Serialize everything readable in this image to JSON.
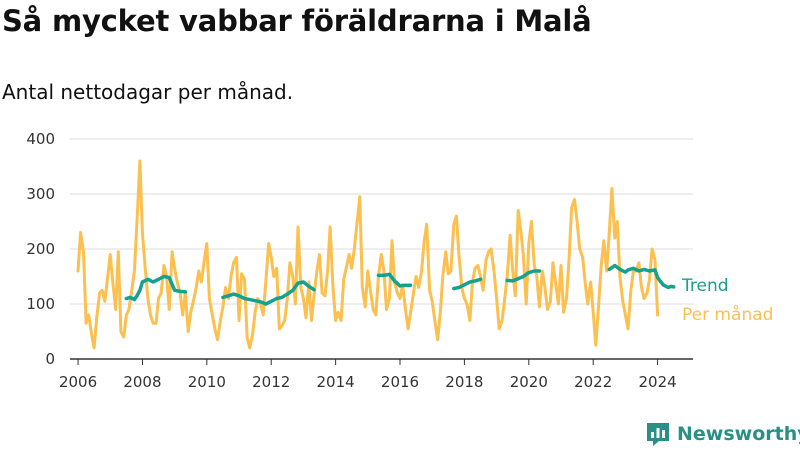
{
  "title": "Så mycket vabbar föräldrarna i Malå",
  "subtitle": "Antal nettodagar per månad.",
  "brand": "Newsworthy",
  "colors": {
    "trend": "#16a08e",
    "monthly": "#fbc04f",
    "grid": "#dddddd",
    "axis": "#333333"
  },
  "chart_data": {
    "type": "line",
    "title": "Så mycket vabbar föräldrarna i Malå",
    "subtitle": "Antal nettodagar per månad.",
    "xlabel": "",
    "ylabel": "",
    "ylim": [
      0,
      400
    ],
    "xlim": [
      2005.75,
      2025.1
    ],
    "x_ticks": [
      "2006",
      "2008",
      "2010",
      "2012",
      "2014",
      "2016",
      "2018",
      "2020",
      "2022",
      "2024"
    ],
    "y_ticks": [
      0,
      100,
      200,
      300,
      400
    ],
    "grid": true,
    "legend": "right",
    "series": [
      {
        "name": "Per månad",
        "color": "#fbc04f",
        "points": [
          [
            2006.0,
            160
          ],
          [
            2006.08,
            230
          ],
          [
            2006.17,
            195
          ],
          [
            2006.25,
            65
          ],
          [
            2006.33,
            80
          ],
          [
            2006.42,
            45
          ],
          [
            2006.5,
            20
          ],
          [
            2006.58,
            75
          ],
          [
            2006.67,
            120
          ],
          [
            2006.75,
            125
          ],
          [
            2006.83,
            105
          ],
          [
            2006.92,
            150
          ],
          [
            2007.0,
            190
          ],
          [
            2007.08,
            140
          ],
          [
            2007.17,
            90
          ],
          [
            2007.25,
            195
          ],
          [
            2007.33,
            50
          ],
          [
            2007.42,
            40
          ],
          [
            2007.5,
            80
          ],
          [
            2007.58,
            90
          ],
          [
            2007.67,
            125
          ],
          [
            2007.75,
            160
          ],
          [
            2007.83,
            250
          ],
          [
            2007.92,
            360
          ],
          [
            2008.0,
            230
          ],
          [
            2008.08,
            170
          ],
          [
            2008.17,
            110
          ],
          [
            2008.25,
            80
          ],
          [
            2008.33,
            65
          ],
          [
            2008.42,
            65
          ],
          [
            2008.5,
            110
          ],
          [
            2008.58,
            120
          ],
          [
            2008.67,
            170
          ],
          [
            2008.75,
            150
          ],
          [
            2008.83,
            90
          ],
          [
            2008.92,
            195
          ],
          [
            2009.0,
            165
          ],
          [
            2009.08,
            140
          ],
          [
            2009.17,
            120
          ],
          [
            2009.25,
            80
          ],
          [
            2009.33,
            120
          ],
          [
            2009.42,
            50
          ],
          [
            2009.5,
            85
          ],
          [
            2009.58,
            105
          ],
          [
            2009.67,
            130
          ],
          [
            2009.75,
            160
          ],
          [
            2009.83,
            140
          ],
          [
            2009.92,
            180
          ],
          [
            2010.0,
            210
          ],
          [
            2010.08,
            110
          ],
          [
            2010.17,
            80
          ],
          [
            2010.25,
            55
          ],
          [
            2010.33,
            35
          ],
          [
            2010.42,
            70
          ],
          [
            2010.5,
            95
          ],
          [
            2010.58,
            130
          ],
          [
            2010.67,
            110
          ],
          [
            2010.75,
            150
          ],
          [
            2010.83,
            175
          ],
          [
            2010.92,
            185
          ],
          [
            2011.0,
            70
          ],
          [
            2011.08,
            155
          ],
          [
            2011.17,
            145
          ],
          [
            2011.25,
            40
          ],
          [
            2011.33,
            20
          ],
          [
            2011.42,
            45
          ],
          [
            2011.5,
            85
          ],
          [
            2011.58,
            110
          ],
          [
            2011.67,
            100
          ],
          [
            2011.75,
            80
          ],
          [
            2011.83,
            140
          ],
          [
            2011.92,
            210
          ],
          [
            2012.0,
            185
          ],
          [
            2012.08,
            150
          ],
          [
            2012.17,
            165
          ],
          [
            2012.25,
            55
          ],
          [
            2012.33,
            60
          ],
          [
            2012.42,
            70
          ],
          [
            2012.5,
            110
          ],
          [
            2012.58,
            175
          ],
          [
            2012.67,
            150
          ],
          [
            2012.75,
            100
          ],
          [
            2012.83,
            240
          ],
          [
            2012.92,
            130
          ],
          [
            2013.0,
            110
          ],
          [
            2013.08,
            75
          ],
          [
            2013.17,
            140
          ],
          [
            2013.25,
            70
          ],
          [
            2013.33,
            115
          ],
          [
            2013.42,
            160
          ],
          [
            2013.5,
            190
          ],
          [
            2013.58,
            120
          ],
          [
            2013.67,
            115
          ],
          [
            2013.75,
            160
          ],
          [
            2013.83,
            240
          ],
          [
            2013.92,
            130
          ],
          [
            2014.0,
            70
          ],
          [
            2014.08,
            85
          ],
          [
            2014.17,
            70
          ],
          [
            2014.25,
            145
          ],
          [
            2014.33,
            165
          ],
          [
            2014.42,
            190
          ],
          [
            2014.5,
            165
          ],
          [
            2014.58,
            200
          ],
          [
            2014.67,
            250
          ],
          [
            2014.75,
            295
          ],
          [
            2014.83,
            130
          ],
          [
            2014.92,
            95
          ],
          [
            2015.0,
            160
          ],
          [
            2015.08,
            125
          ],
          [
            2015.17,
            90
          ],
          [
            2015.25,
            80
          ],
          [
            2015.33,
            150
          ],
          [
            2015.42,
            190
          ],
          [
            2015.5,
            160
          ],
          [
            2015.58,
            90
          ],
          [
            2015.67,
            110
          ],
          [
            2015.75,
            215
          ],
          [
            2015.83,
            140
          ],
          [
            2015.92,
            120
          ],
          [
            2016.0,
            110
          ],
          [
            2016.08,
            135
          ],
          [
            2016.17,
            90
          ],
          [
            2016.25,
            55
          ],
          [
            2016.33,
            85
          ],
          [
            2016.42,
            120
          ],
          [
            2016.5,
            150
          ],
          [
            2016.58,
            130
          ],
          [
            2016.67,
            160
          ],
          [
            2016.75,
            215
          ],
          [
            2016.83,
            245
          ],
          [
            2016.92,
            125
          ],
          [
            2017.0,
            105
          ],
          [
            2017.08,
            70
          ],
          [
            2017.17,
            35
          ],
          [
            2017.25,
            85
          ],
          [
            2017.33,
            150
          ],
          [
            2017.42,
            195
          ],
          [
            2017.5,
            155
          ],
          [
            2017.58,
            160
          ],
          [
            2017.67,
            245
          ],
          [
            2017.75,
            260
          ],
          [
            2017.83,
            190
          ],
          [
            2017.92,
            130
          ],
          [
            2018.0,
            110
          ],
          [
            2018.08,
            100
          ],
          [
            2018.17,
            70
          ],
          [
            2018.25,
            140
          ],
          [
            2018.33,
            165
          ],
          [
            2018.42,
            170
          ],
          [
            2018.5,
            150
          ],
          [
            2018.58,
            125
          ],
          [
            2018.67,
            180
          ],
          [
            2018.75,
            195
          ],
          [
            2018.83,
            200
          ],
          [
            2018.92,
            160
          ],
          [
            2019.0,
            110
          ],
          [
            2019.08,
            55
          ],
          [
            2019.17,
            70
          ],
          [
            2019.25,
            110
          ],
          [
            2019.33,
            150
          ],
          [
            2019.42,
            225
          ],
          [
            2019.5,
            160
          ],
          [
            2019.58,
            115
          ],
          [
            2019.67,
            270
          ],
          [
            2019.75,
            235
          ],
          [
            2019.83,
            190
          ],
          [
            2019.92,
            100
          ],
          [
            2020.0,
            210
          ],
          [
            2020.08,
            250
          ],
          [
            2020.17,
            170
          ],
          [
            2020.25,
            150
          ],
          [
            2020.33,
            95
          ],
          [
            2020.42,
            160
          ],
          [
            2020.5,
            130
          ],
          [
            2020.58,
            90
          ],
          [
            2020.67,
            105
          ],
          [
            2020.75,
            175
          ],
          [
            2020.83,
            140
          ],
          [
            2020.92,
            100
          ],
          [
            2021.0,
            170
          ],
          [
            2021.08,
            85
          ],
          [
            2021.17,
            110
          ],
          [
            2021.25,
            180
          ],
          [
            2021.33,
            275
          ],
          [
            2021.42,
            290
          ],
          [
            2021.5,
            250
          ],
          [
            2021.58,
            200
          ],
          [
            2021.67,
            185
          ],
          [
            2021.75,
            140
          ],
          [
            2021.83,
            100
          ],
          [
            2021.92,
            140
          ],
          [
            2022.0,
            85
          ],
          [
            2022.08,
            25
          ],
          [
            2022.17,
            100
          ],
          [
            2022.25,
            170
          ],
          [
            2022.33,
            215
          ],
          [
            2022.42,
            160
          ],
          [
            2022.5,
            230
          ],
          [
            2022.58,
            310
          ],
          [
            2022.67,
            220
          ],
          [
            2022.75,
            250
          ],
          [
            2022.83,
            150
          ],
          [
            2022.92,
            105
          ],
          [
            2023.0,
            80
          ],
          [
            2023.08,
            55
          ],
          [
            2023.17,
            125
          ],
          [
            2023.25,
            160
          ],
          [
            2023.33,
            160
          ],
          [
            2023.42,
            175
          ],
          [
            2023.5,
            130
          ],
          [
            2023.58,
            110
          ],
          [
            2023.67,
            120
          ],
          [
            2023.75,
            145
          ],
          [
            2023.83,
            200
          ],
          [
            2023.92,
            180
          ],
          [
            2024.0,
            80
          ]
        ]
      },
      {
        "name": "Trend",
        "color": "#16a08e",
        "segments": [
          [
            [
              2007.5,
              110
            ],
            [
              2007.62,
              112
            ],
            [
              2007.75,
              108
            ],
            [
              2007.83,
              115
            ],
            [
              2007.92,
              125
            ],
            [
              2008.0,
              140
            ],
            [
              2008.17,
              145
            ],
            [
              2008.33,
              140
            ],
            [
              2008.5,
              145
            ],
            [
              2008.67,
              150
            ],
            [
              2008.83,
              148
            ],
            [
              2009.0,
              125
            ],
            [
              2009.17,
              123
            ],
            [
              2009.33,
              122
            ]
          ],
          [
            [
              2010.5,
              112
            ],
            [
              2010.67,
              115
            ],
            [
              2010.83,
              118
            ],
            [
              2011.0,
              115
            ],
            [
              2011.17,
              110
            ],
            [
              2011.33,
              108
            ],
            [
              2011.5,
              106
            ],
            [
              2011.67,
              104
            ],
            [
              2011.83,
              100
            ],
            [
              2012.0,
              105
            ],
            [
              2012.17,
              110
            ],
            [
              2012.33,
              112
            ],
            [
              2012.5,
              118
            ],
            [
              2012.67,
              125
            ],
            [
              2012.83,
              138
            ],
            [
              2013.0,
              140
            ],
            [
              2013.17,
              132
            ],
            [
              2013.33,
              126
            ]
          ],
          [
            [
              2015.33,
              152
            ],
            [
              2015.5,
              152
            ],
            [
              2015.67,
              154
            ],
            [
              2015.83,
              142
            ],
            [
              2016.0,
              133
            ],
            [
              2016.17,
              134
            ],
            [
              2016.33,
              134
            ]
          ],
          [
            [
              2017.67,
              128
            ],
            [
              2017.83,
              130
            ],
            [
              2018.0,
              135
            ],
            [
              2018.17,
              140
            ],
            [
              2018.33,
              142
            ],
            [
              2018.5,
              145
            ]
          ],
          [
            [
              2019.33,
              143
            ],
            [
              2019.5,
              142
            ],
            [
              2019.67,
              146
            ],
            [
              2019.83,
              150
            ],
            [
              2020.0,
              157
            ],
            [
              2020.17,
              160
            ],
            [
              2020.33,
              160
            ]
          ],
          [
            [
              2022.5,
              163
            ],
            [
              2022.67,
              170
            ],
            [
              2022.83,
              163
            ],
            [
              2023.0,
              158
            ],
            [
              2023.08,
              162
            ],
            [
              2023.25,
              165
            ],
            [
              2023.42,
              160
            ],
            [
              2023.58,
              163
            ],
            [
              2023.75,
              160
            ],
            [
              2023.92,
              162
            ],
            [
              2024.0,
              148
            ],
            [
              2024.17,
              135
            ],
            [
              2024.33,
              130
            ],
            [
              2024.42,
              132
            ],
            [
              2024.5,
              131
            ]
          ]
        ]
      }
    ]
  }
}
